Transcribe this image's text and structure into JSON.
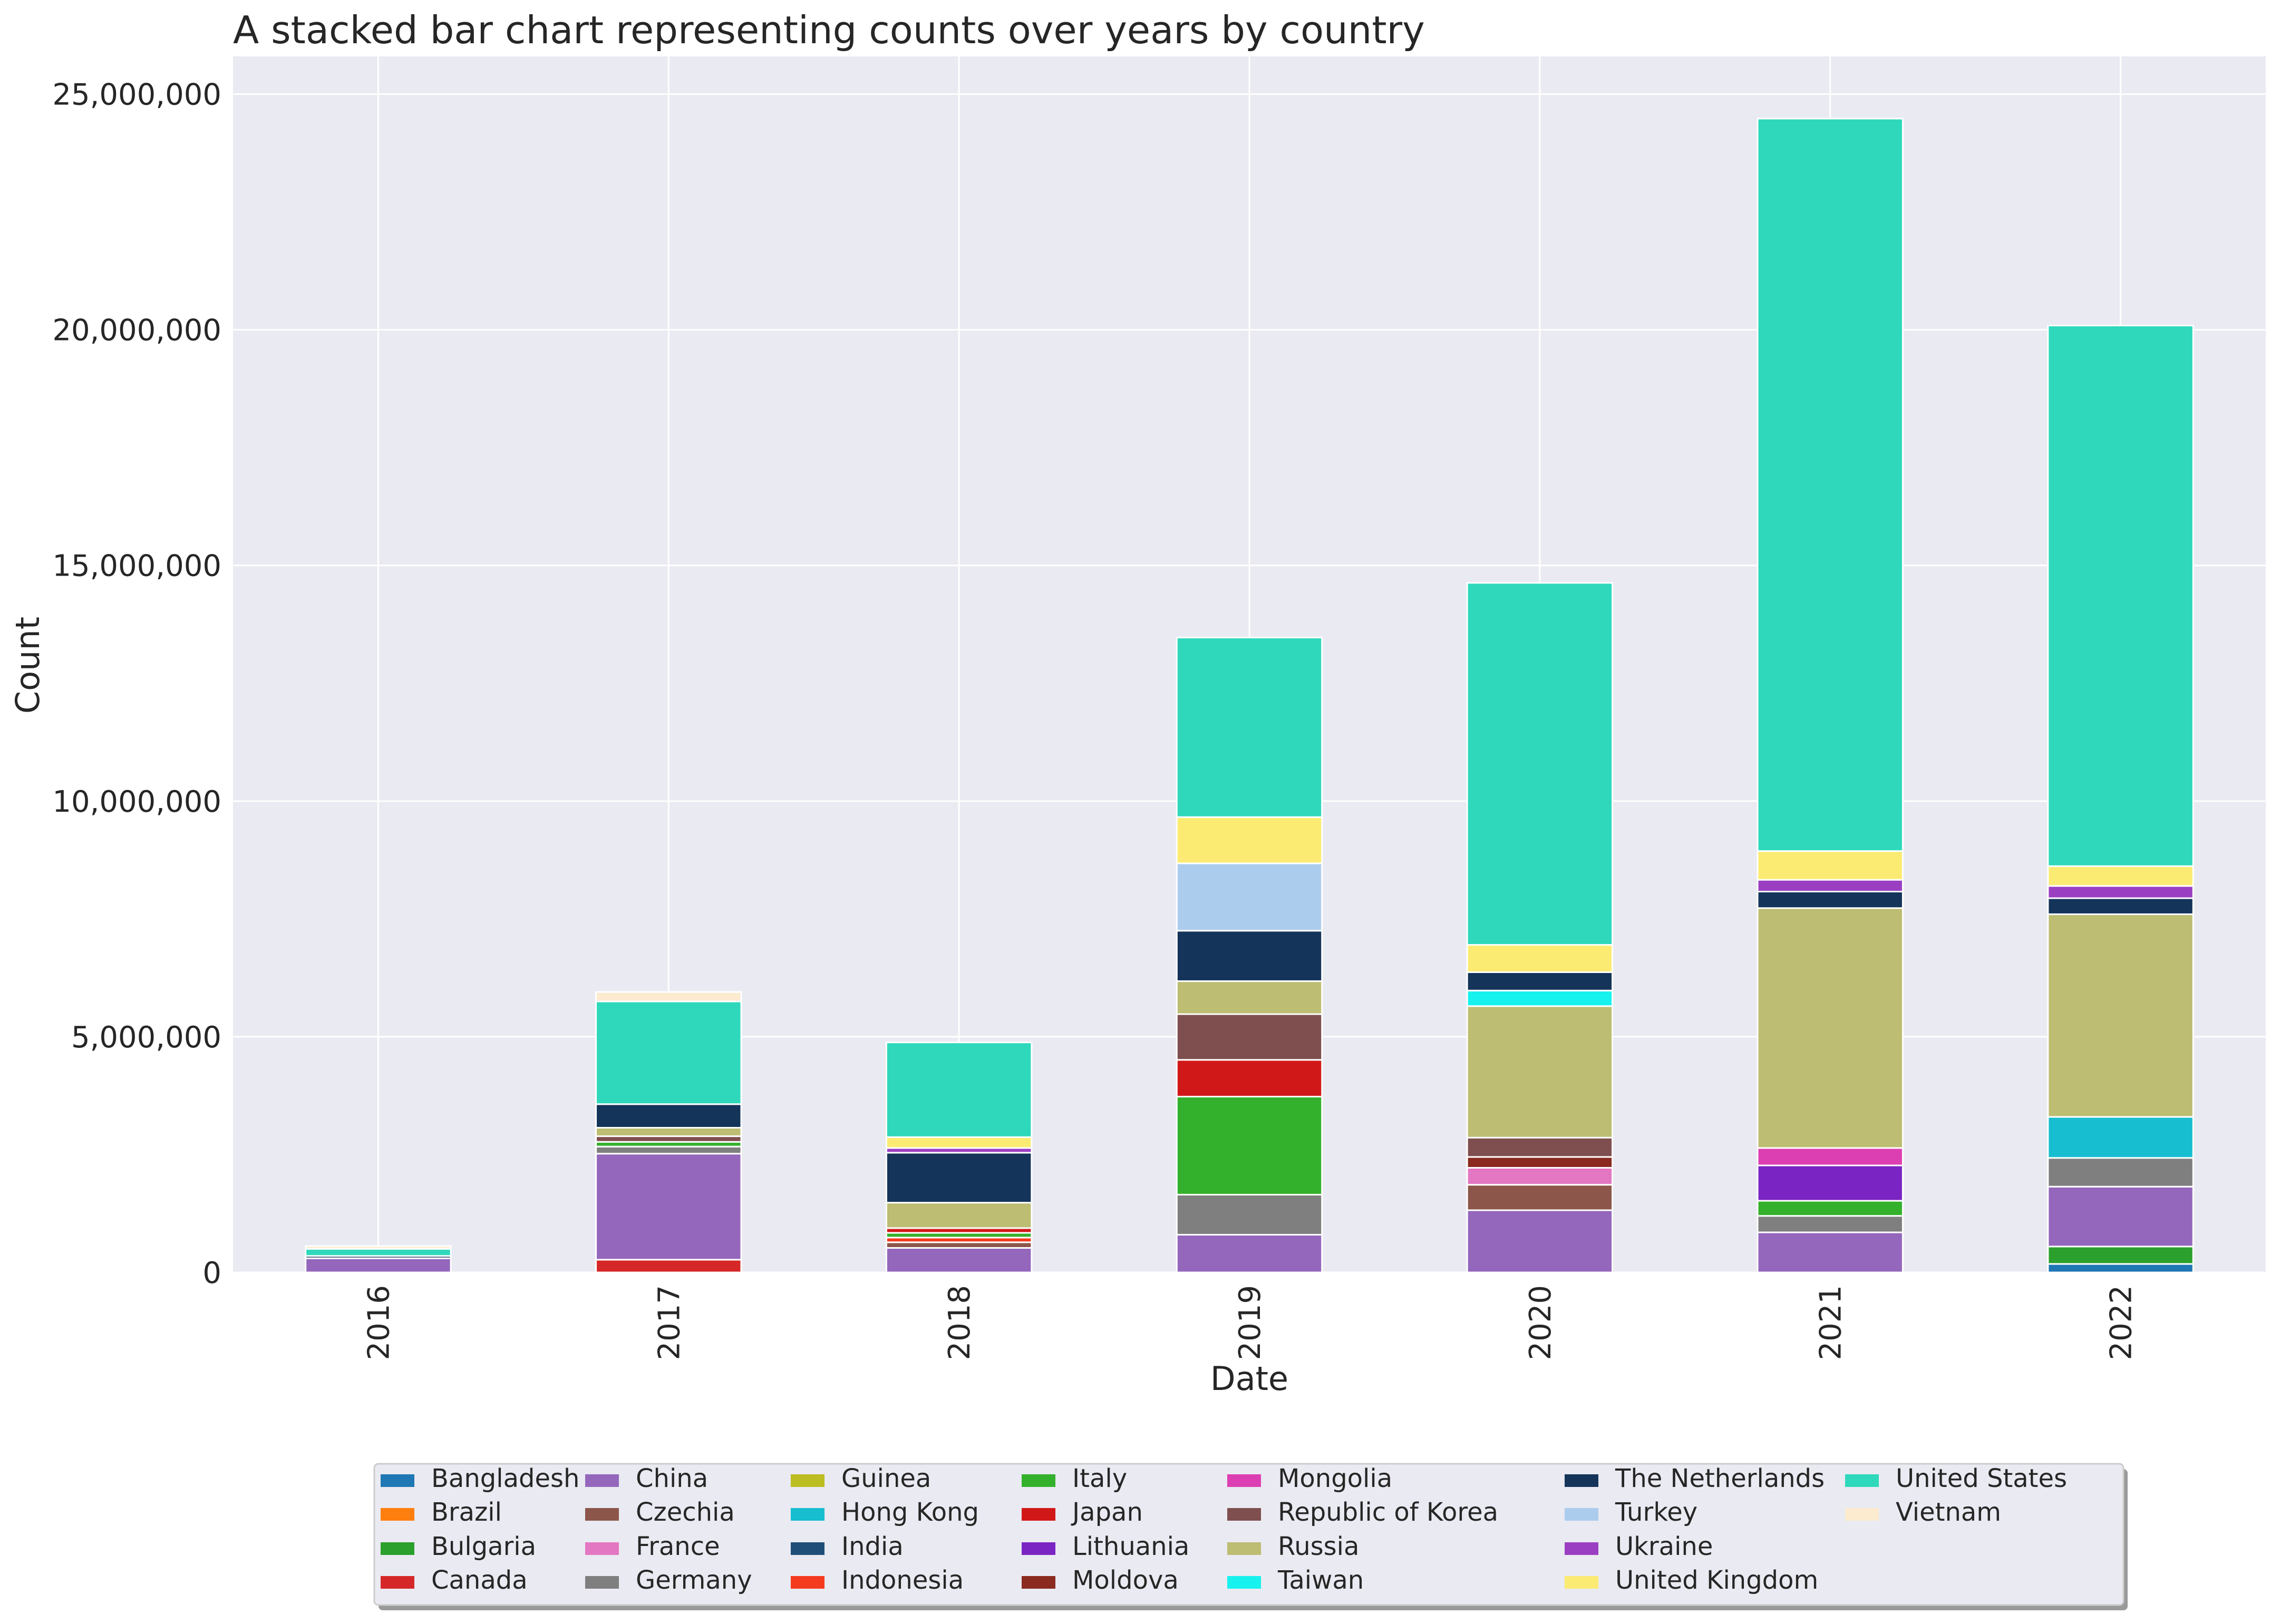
{
  "chart_data": {
    "type": "bar",
    "stacked": true,
    "title": "A stacked bar chart representing counts over years by country",
    "xlabel": "Date",
    "ylabel": "Count",
    "ylim": [
      0,
      25800000
    ],
    "yticks": [
      0,
      5000000,
      10000000,
      15000000,
      20000000,
      25000000
    ],
    "ytick_labels": [
      "0",
      "5,000,000",
      "10,000,000",
      "15,000,000",
      "20,000,000",
      "25,000,000"
    ],
    "grid": true,
    "legend_position": "bottom-center",
    "categories": [
      "2016",
      "2017",
      "2018",
      "2019",
      "2020",
      "2021",
      "2022"
    ],
    "series": [
      {
        "name": "Bangladesh",
        "color": "#1f77b4",
        "values": [
          0,
          0,
          0,
          0,
          0,
          0,
          180000
        ]
      },
      {
        "name": "Brazil",
        "color": "#ff7f0e",
        "values": [
          0,
          0,
          0,
          0,
          0,
          0,
          0
        ]
      },
      {
        "name": "Bulgaria",
        "color": "#2ca02c",
        "values": [
          0,
          0,
          0,
          0,
          0,
          0,
          370000
        ]
      },
      {
        "name": "Canada",
        "color": "#d62728",
        "values": [
          0,
          270000,
          0,
          0,
          0,
          0,
          0
        ]
      },
      {
        "name": "China",
        "color": "#9467bd",
        "values": [
          300000,
          2250000,
          520000,
          800000,
          1320000,
          850000,
          1270000
        ]
      },
      {
        "name": "Czechia",
        "color": "#8c564b",
        "values": [
          0,
          0,
          120000,
          0,
          540000,
          0,
          0
        ]
      },
      {
        "name": "France",
        "color": "#e377c2",
        "values": [
          0,
          0,
          0,
          0,
          360000,
          0,
          0
        ]
      },
      {
        "name": "Germany",
        "color": "#7f7f7f",
        "values": [
          0,
          150000,
          0,
          850000,
          0,
          350000,
          610000
        ]
      },
      {
        "name": "Guinea",
        "color": "#bcbd22",
        "values": [
          0,
          0,
          0,
          0,
          0,
          0,
          0
        ]
      },
      {
        "name": "Hong Kong",
        "color": "#17becf",
        "values": [
          0,
          0,
          0,
          0,
          0,
          0,
          870000
        ]
      },
      {
        "name": "India",
        "color": "#1f4e79",
        "values": [
          0,
          0,
          0,
          0,
          0,
          0,
          0
        ]
      },
      {
        "name": "Indonesia",
        "color": "#f53b1f",
        "values": [
          0,
          0,
          100000,
          0,
          0,
          0,
          0
        ]
      },
      {
        "name": "Italy",
        "color": "#34b12c",
        "values": [
          0,
          100000,
          100000,
          2080000,
          0,
          320000,
          0
        ]
      },
      {
        "name": "Japan",
        "color": "#d11818",
        "values": [
          0,
          0,
          100000,
          780000,
          0,
          0,
          0
        ]
      },
      {
        "name": "Lithuania",
        "color": "#7a25c3",
        "values": [
          0,
          0,
          0,
          0,
          0,
          750000,
          0
        ]
      },
      {
        "name": "Moldova",
        "color": "#8b2a1f",
        "values": [
          0,
          0,
          0,
          0,
          230000,
          0,
          0
        ]
      },
      {
        "name": "Mongolia",
        "color": "#dc3fb2",
        "values": [
          0,
          0,
          0,
          0,
          0,
          370000,
          0
        ]
      },
      {
        "name": "Republic of Korea",
        "color": "#7f4f4f",
        "values": [
          0,
          120000,
          0,
          970000,
          410000,
          0,
          0
        ]
      },
      {
        "name": "Russia",
        "color": "#bdbd73",
        "values": [
          0,
          180000,
          540000,
          700000,
          2790000,
          5090000,
          4300000
        ]
      },
      {
        "name": "Taiwan",
        "color": "#18f2ee",
        "values": [
          0,
          0,
          0,
          0,
          330000,
          0,
          0
        ]
      },
      {
        "name": "The Netherlands",
        "color": "#14345a",
        "values": [
          50000,
          500000,
          1060000,
          1070000,
          390000,
          350000,
          340000
        ]
      },
      {
        "name": "Turkey",
        "color": "#acccee",
        "values": [
          0,
          0,
          0,
          1430000,
          0,
          0,
          0
        ]
      },
      {
        "name": "Ukraine",
        "color": "#9b3fc2",
        "values": [
          0,
          0,
          100000,
          0,
          0,
          250000,
          260000
        ]
      },
      {
        "name": "United Kingdom",
        "color": "#fbeb73",
        "values": [
          0,
          0,
          230000,
          980000,
          580000,
          610000,
          420000
        ]
      },
      {
        "name": "United States",
        "color": "#2fd8bb",
        "values": [
          150000,
          2180000,
          2010000,
          3810000,
          7680000,
          15540000,
          11470000
        ]
      },
      {
        "name": "Vietnam",
        "color": "#fdebd0",
        "values": [
          60000,
          200000,
          0,
          0,
          0,
          0,
          0
        ]
      }
    ]
  }
}
